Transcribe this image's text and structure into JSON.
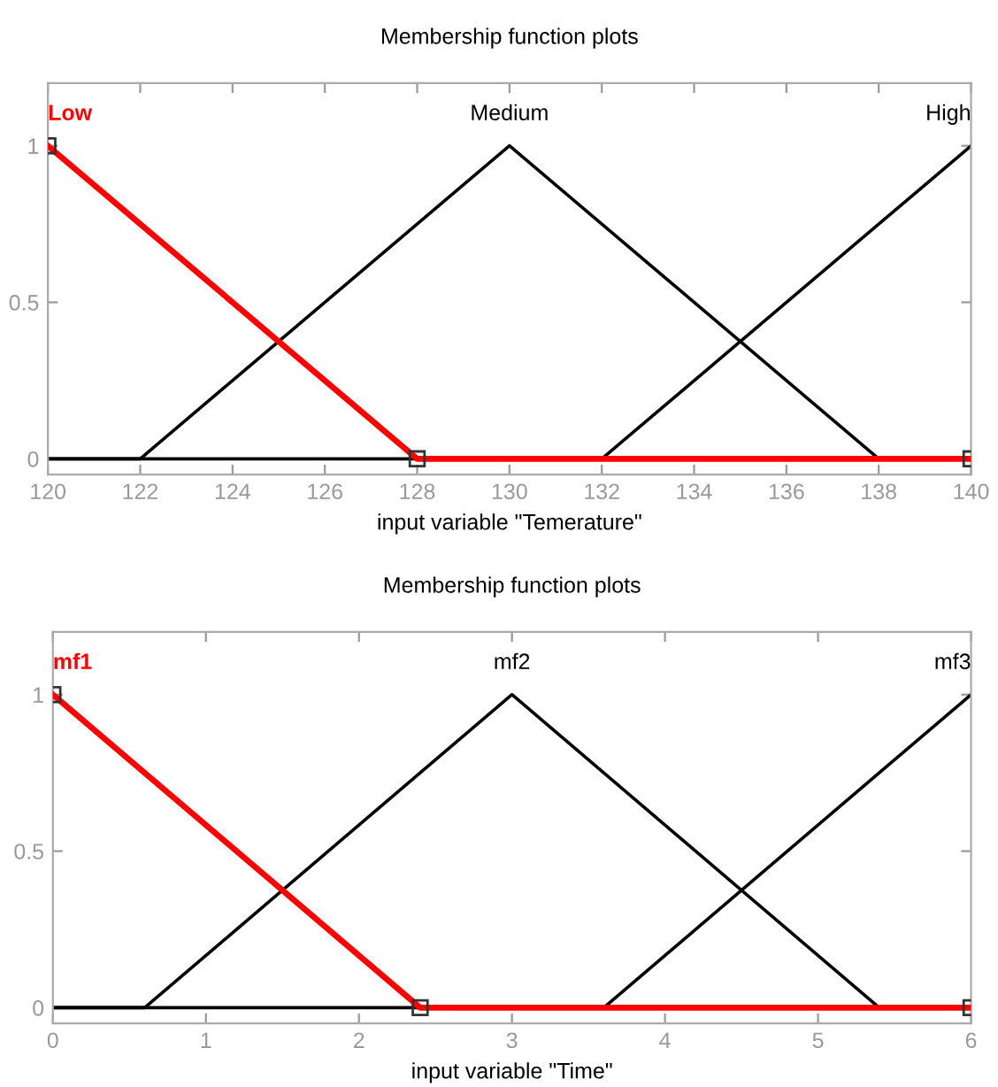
{
  "chart_data": [
    {
      "type": "line",
      "title": "Membership function plots",
      "xlabel": "input variable \"Temerature\"",
      "xlim": [
        120,
        140
      ],
      "xticks": [
        120,
        122,
        124,
        126,
        128,
        130,
        132,
        134,
        136,
        138,
        140
      ],
      "ylim": [
        -0.05,
        1.2
      ],
      "yticks": [
        0,
        0.5,
        1
      ],
      "grid": false,
      "legend": false,
      "series": [
        {
          "name": "Medium",
          "color": "#000000",
          "x": [
            120,
            122,
            130,
            138,
            140
          ],
          "values": [
            0,
            0,
            1,
            0,
            0
          ]
        },
        {
          "name": "High",
          "color": "#000000",
          "x": [
            120,
            132,
            140
          ],
          "values": [
            0,
            0,
            1
          ]
        },
        {
          "name": "Low",
          "color": "#ff0000",
          "marker": "square",
          "x": [
            120,
            128,
            140
          ],
          "values": [
            1,
            0,
            0
          ]
        }
      ]
    },
    {
      "type": "line",
      "title": "Membership function plots",
      "xlabel": "input variable \"Time\"",
      "xlim": [
        0,
        6
      ],
      "xticks": [
        0,
        1,
        2,
        3,
        4,
        5,
        6
      ],
      "ylim": [
        -0.05,
        1.2
      ],
      "yticks": [
        0,
        0.5,
        1
      ],
      "grid": false,
      "legend": false,
      "series": [
        {
          "name": "mf2",
          "color": "#000000",
          "x": [
            0,
            0.6,
            3,
            5.4,
            6
          ],
          "values": [
            0,
            0,
            1,
            0,
            0
          ]
        },
        {
          "name": "mf3",
          "color": "#000000",
          "x": [
            0,
            3.6,
            6
          ],
          "values": [
            0,
            0,
            1
          ]
        },
        {
          "name": "mf1",
          "color": "#ff0000",
          "marker": "square",
          "x": [
            0,
            2.4,
            6
          ],
          "values": [
            1,
            0,
            0
          ]
        }
      ]
    }
  ]
}
